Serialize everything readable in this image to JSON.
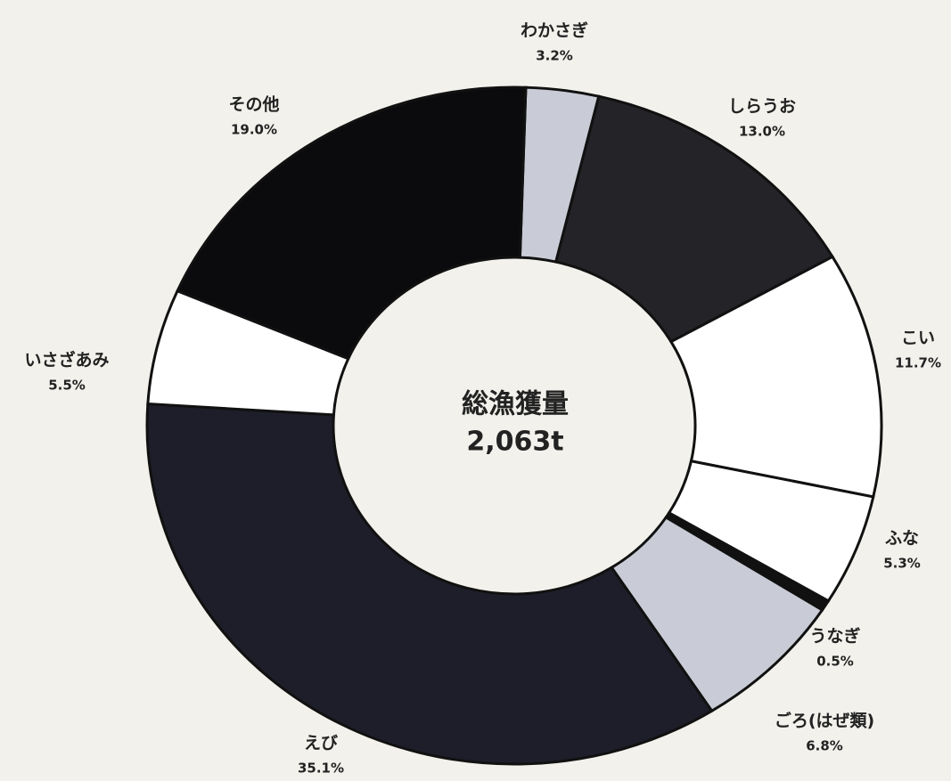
{
  "chart_data": {
    "type": "donut",
    "center_label": "総漁獲量",
    "center_value": "2,063t",
    "categories": [
      "わかさぎ",
      "しらうお",
      "こい",
      "ふな",
      "うなぎ",
      "ごろ(はぜ類)",
      "えび",
      "いさざあみ",
      "その他"
    ],
    "values": [
      3.2,
      13.0,
      11.7,
      5.3,
      0.5,
      6.8,
      35.1,
      5.5,
      19.0
    ],
    "value_labels": [
      "3.2%",
      "13.0%",
      "11.7%",
      "5.3%",
      "0.5%",
      "6.8%",
      "35.1%",
      "5.5%",
      "19.0%"
    ],
    "colors": [
      "#c9ccd6",
      "#232328",
      "#ffffff",
      "#ffffff",
      "#111111",
      "#c9ccd6",
      "#1e1e2a",
      "#ffffff",
      "#0b0b0e"
    ]
  }
}
